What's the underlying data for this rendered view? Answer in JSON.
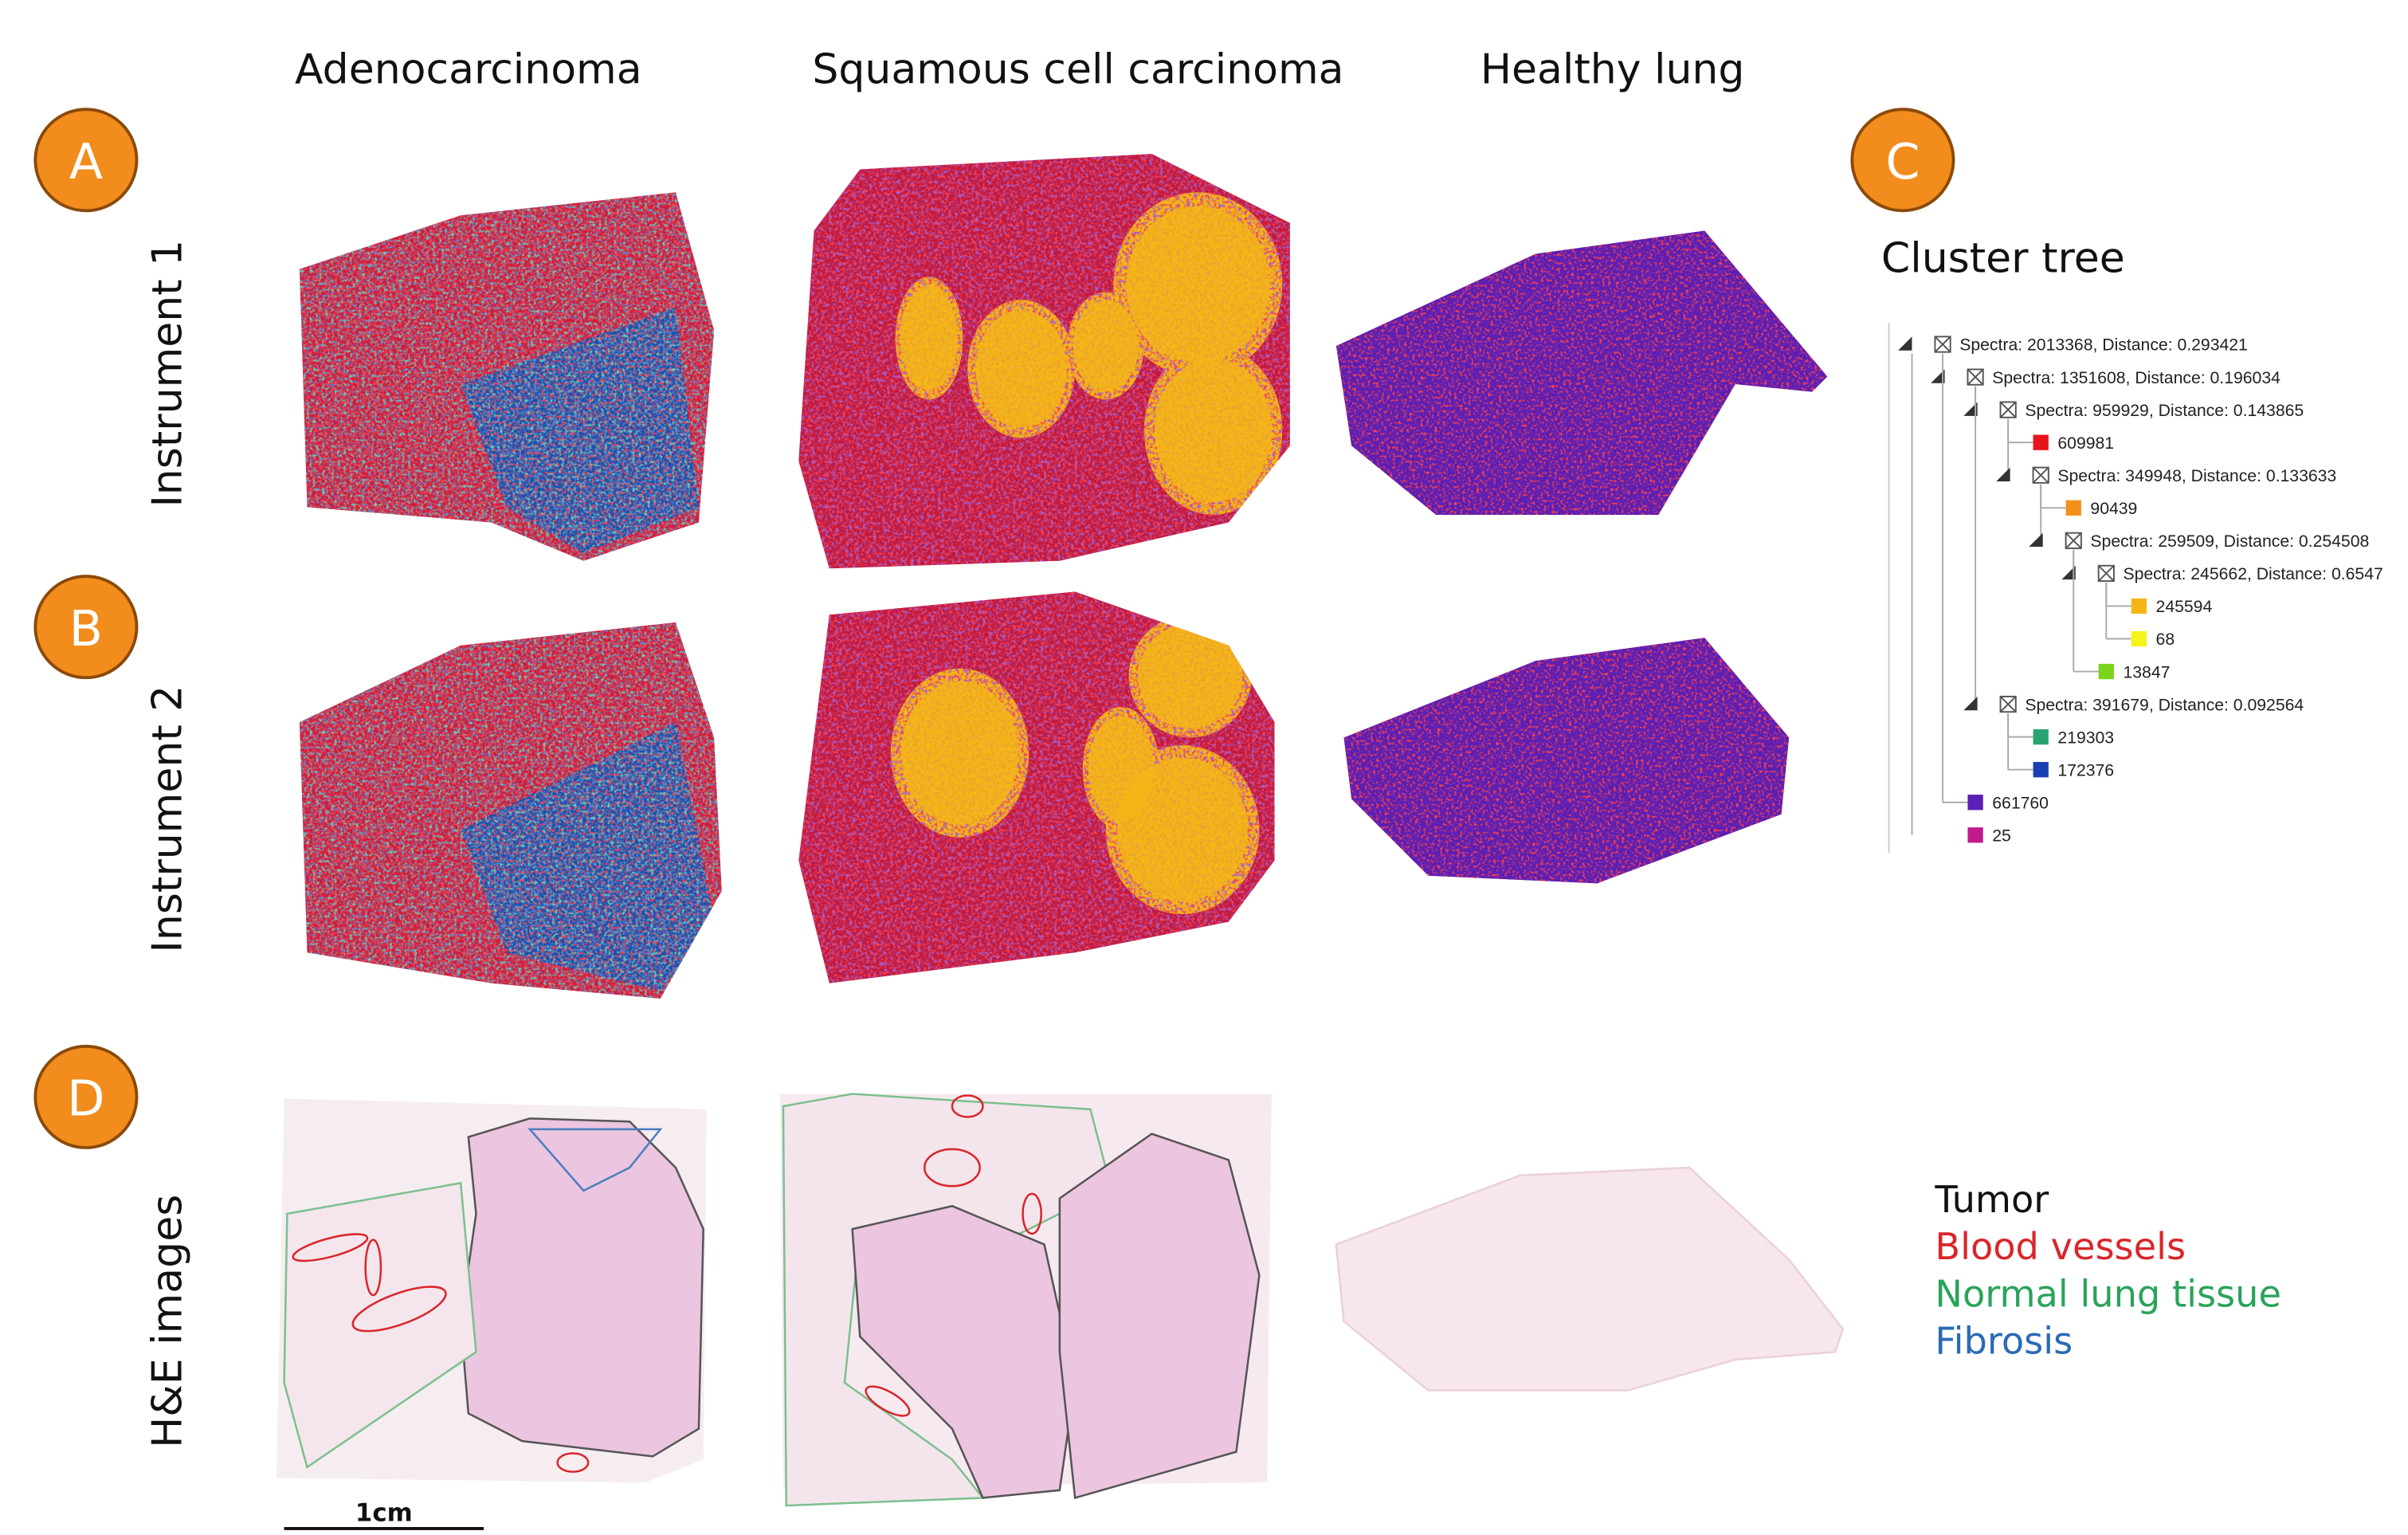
{
  "panel_labels": [
    "A",
    "B",
    "C",
    "D"
  ],
  "column_headers": [
    "Adenocarcinoma",
    "Squamous cell carcinoma",
    "Healthy lung"
  ],
  "row_labels": [
    "Instrument 1",
    "Instrument 2",
    "H&E images"
  ],
  "cluster_tree": {
    "title": "Cluster tree",
    "nodes": [
      {
        "label": "Spectra: 2013368, Distance: 0.293421",
        "children": [
          {
            "label": "Spectra: 1351608, Distance: 0.196034",
            "children": [
              {
                "label": "Spectra: 959929, Distance: 0.143865",
                "children": [
                  {
                    "label": "609981",
                    "color": "#e8141b"
                  },
                  {
                    "label": "Spectra: 349948, Distance: 0.133633",
                    "children": [
                      {
                        "label": "90439",
                        "color": "#f39019"
                      },
                      {
                        "label": "Spectra: 259509, Distance: 0.254508",
                        "children": [
                          {
                            "label": "Spectra: 245662, Distance: 0.6547",
                            "children": [
                              {
                                "label": "245594",
                                "color": "#f4b716"
                              },
                              {
                                "label": "68",
                                "color": "#f4f41a"
                              }
                            ]
                          },
                          {
                            "label": "13847",
                            "color": "#7bd31c"
                          }
                        ]
                      }
                    ]
                  }
                ]
              },
              {
                "label": "Spectra: 391679, Distance: 0.092564",
                "children": [
                  {
                    "label": "219303",
                    "color": "#2aa372"
                  },
                  {
                    "label": "172376",
                    "color": "#1a3fb0"
                  }
                ]
              }
            ]
          },
          {
            "label": "661760",
            "color": "#5a1fb5"
          }
        ]
      },
      {
        "label": "25",
        "color": "#c21a8c"
      }
    ]
  },
  "legend": [
    {
      "label": "Tumor",
      "color": "#111111"
    },
    {
      "label": "Blood vessels",
      "color": "#d9262b"
    },
    {
      "label": "Normal lung tissue",
      "color": "#2aa35a"
    },
    {
      "label": "Fibrosis",
      "color": "#2a6bb5"
    }
  ],
  "scale_bar": "1cm"
}
